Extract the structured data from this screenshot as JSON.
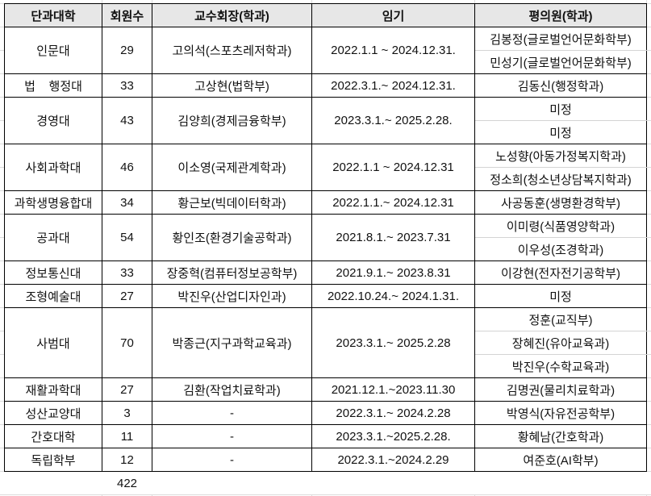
{
  "headers": [
    "단과대학",
    "회원수",
    "교수회장(학과)",
    "임기",
    "평의원(학과)"
  ],
  "rows": [
    {
      "college": "인문대",
      "members": "29",
      "president": "고의석(스포츠레저학과)",
      "term": "2022.1.1 ~ 2024.12.31.",
      "councilors": [
        "김봉정(글로벌언어문화학부)",
        "민성기(글로벌언어문화학부)"
      ]
    },
    {
      "college": "법    행정대",
      "members": "33",
      "president": "고상현(법학부)",
      "term": "2022.3.1.~ 2024.12.31.",
      "councilors": [
        "김동신(행정학과)"
      ]
    },
    {
      "college": "경영대",
      "members": "43",
      "president": "김양희(경제금융학부)",
      "term": "2023.3.1.~ 2025.2.28.",
      "councilors": [
        "미정",
        "미정"
      ]
    },
    {
      "college": "사회과학대",
      "members": "46",
      "president": "이소영(국제관계학과)",
      "term": "2022.1.1 ~ 2024.12.31",
      "councilors": [
        "노성향(아동가정복지학과)",
        "정소희(청소년상담복지학과)"
      ]
    },
    {
      "college": "과학생명융합대",
      "members": "34",
      "president": "황근보(빅데이터학과)",
      "term": "2022.1.1.~ 2024.12.31",
      "councilors": [
        "사공동훈(생명환경학부)"
      ]
    },
    {
      "college": "공과대",
      "members": "54",
      "president": "황인조(환경기술공학과)",
      "term": "2021.8.1.~ 2023.7.31",
      "councilors": [
        "이미령(식품영양학과)",
        "이우성(조경학과)"
      ]
    },
    {
      "college": "정보통신대",
      "members": "33",
      "president": "장중혁(컴퓨터정보공학부)",
      "term": "2021.9.1.~ 2023.8.31",
      "councilors": [
        "이강현(전자전기공학부)"
      ]
    },
    {
      "college": "조형예술대",
      "members": "27",
      "president": "박진우(산업디자인과)",
      "term": "2022.10.24.~ 2024.1.31.",
      "councilors": [
        "미정"
      ]
    },
    {
      "college": "사범대",
      "members": "70",
      "president": "박종근(지구과학교육과)",
      "term": "2023.3.1.~ 2025.2.28",
      "councilors": [
        "정훈(교직부)",
        "장혜진(유아교육과)",
        "박진우(수학교육과)"
      ]
    },
    {
      "college": "재활과학대",
      "members": "27",
      "president": "김환(작업치료학과)",
      "term": "2021.12.1.~2023.11.30",
      "councilors": [
        "김명권(물리치료학과)"
      ]
    },
    {
      "college": "성산교양대",
      "members": "3",
      "president": "-",
      "term": "2022.3.1.~ 2024.2.28",
      "councilors": [
        "박영식(자유전공학부)"
      ]
    },
    {
      "college": "간호대학",
      "members": "11",
      "president": "-",
      "term": "2023.3.1.~2025.2.28.",
      "councilors": [
        "황혜남(간호학과)"
      ]
    },
    {
      "college": "독립학부",
      "members": "12",
      "president": "-",
      "term": "2022.3.1.~2024.2.29",
      "councilors": [
        "여준호(AI학부)"
      ]
    }
  ],
  "total_members": "422"
}
